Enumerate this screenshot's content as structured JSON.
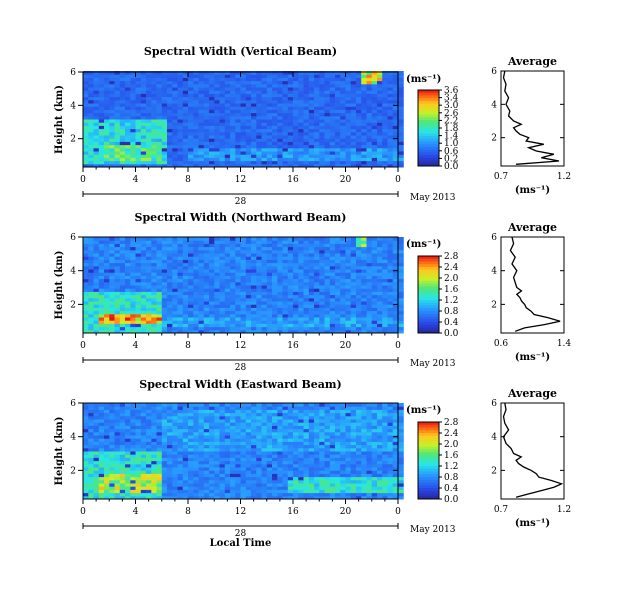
{
  "chart_data": [
    {
      "type": "heatmap",
      "title": "Spectral Width (Vertical Beam)",
      "ylabel": "Height (km)",
      "xlabel": "",
      "x_ticks": [
        "0",
        "4",
        "8",
        "12",
        "16",
        "20",
        "0"
      ],
      "y_ticks": [
        "2",
        "4",
        "6"
      ],
      "xlim": [
        0,
        24
      ],
      "ylim": [
        0.3,
        6
      ],
      "date_day": "28",
      "date_label": "May 2013",
      "colorbar": {
        "unit": "(ms⁻¹)",
        "min": 0.0,
        "max": 3.6,
        "ticks": [
          "3.6",
          "3.4",
          "3.0",
          "2.6",
          "2.2",
          "1.8",
          "1.4",
          "1.0",
          "0.6",
          "0.2",
          "0.0"
        ]
      },
      "features": [
        {
          "t0": 0,
          "t1": 6.2,
          "h0": 0.4,
          "h1": 3.0,
          "value": 1.6
        },
        {
          "t0": 1.5,
          "t1": 6.0,
          "h0": 0.6,
          "h1": 1.6,
          "value": 2.0
        },
        {
          "t0": 8,
          "t1": 24,
          "h0": 0.6,
          "h1": 1.4,
          "value": 1.1
        },
        {
          "t0": 20.8,
          "t1": 22.4,
          "h0": 5.2,
          "h1": 6.0,
          "value": 2.6
        }
      ],
      "average_profile": {
        "title": "Average",
        "xlabel": "(ms⁻¹)",
        "x_ticks": [
          "0.7",
          "1.2"
        ],
        "xlim": [
          0.7,
          1.2
        ],
        "y_ticks": [
          "2",
          "4",
          "6"
        ],
        "ylim": [
          0.3,
          6
        ],
        "height": [
          0.4,
          0.6,
          0.8,
          1.0,
          1.2,
          1.4,
          1.6,
          1.8,
          2.0,
          2.2,
          2.4,
          2.6,
          2.8,
          3.0,
          3.3,
          3.6,
          4.0,
          4.4,
          4.8,
          5.2,
          5.6,
          6.0
        ],
        "values": [
          0.82,
          1.16,
          1.02,
          1.12,
          0.98,
          0.92,
          1.04,
          0.9,
          0.92,
          0.85,
          0.82,
          0.8,
          0.86,
          0.8,
          0.76,
          0.77,
          0.74,
          0.76,
          0.73,
          0.74,
          0.72,
          0.73
        ]
      }
    },
    {
      "type": "heatmap",
      "title": "Spectral Width (Northward Beam)",
      "ylabel": "Height (km)",
      "xlabel": "",
      "x_ticks": [
        "0",
        "4",
        "8",
        "12",
        "16",
        "20",
        "0"
      ],
      "y_ticks": [
        "2",
        "4",
        "6"
      ],
      "xlim": [
        0,
        24
      ],
      "ylim": [
        0.3,
        6
      ],
      "date_day": "28",
      "date_label": "May 2013",
      "colorbar": {
        "unit": "(ms⁻¹)",
        "min": 0.0,
        "max": 2.8,
        "ticks": [
          "2.8",
          "2.4",
          "2.0",
          "1.6",
          "1.2",
          "0.8",
          "0.4",
          "0.0"
        ]
      },
      "features": [
        {
          "t0": 0,
          "t1": 6.0,
          "h0": 0.3,
          "h1": 2.6,
          "value": 1.3
        },
        {
          "t0": 1.0,
          "t1": 6.0,
          "h0": 0.7,
          "h1": 1.3,
          "value": 2.3
        },
        {
          "t0": 6,
          "t1": 24,
          "h0": 0.5,
          "h1": 1.2,
          "value": 0.9
        },
        {
          "t0": 20.5,
          "t1": 21.5,
          "h0": 5.3,
          "h1": 5.9,
          "value": 1.8
        }
      ],
      "average_profile": {
        "title": "Average",
        "xlabel": "(ms⁻¹)",
        "x_ticks": [
          "0.6",
          "1.4"
        ],
        "xlim": [
          0.6,
          1.4
        ],
        "y_ticks": [
          "2",
          "4",
          "6"
        ],
        "ylim": [
          0.3,
          6
        ],
        "height": [
          0.4,
          0.6,
          0.8,
          1.0,
          1.2,
          1.4,
          1.6,
          1.8,
          2.0,
          2.2,
          2.4,
          2.6,
          2.8,
          3.0,
          3.3,
          3.6,
          4.0,
          4.4,
          4.8,
          5.2,
          5.6,
          6.0
        ],
        "values": [
          0.78,
          0.9,
          1.15,
          1.35,
          1.2,
          1.02,
          0.98,
          0.92,
          0.9,
          0.86,
          0.84,
          0.8,
          0.86,
          0.8,
          0.78,
          0.76,
          0.8,
          0.74,
          0.78,
          0.72,
          0.76,
          0.74
        ]
      }
    },
    {
      "type": "heatmap",
      "title": "Spectral Width (Eastward Beam)",
      "ylabel": "Height (km)",
      "xlabel": "Local Time",
      "x_ticks": [
        "0",
        "4",
        "8",
        "12",
        "16",
        "20",
        "0"
      ],
      "y_ticks": [
        "2",
        "4",
        "6"
      ],
      "xlim": [
        0,
        24
      ],
      "ylim": [
        0.3,
        6
      ],
      "date_day": "28",
      "date_label": "May 2013",
      "colorbar": {
        "unit": "(ms⁻¹)",
        "min": 0.0,
        "max": 2.8,
        "ticks": [
          "2.8",
          "2.4",
          "2.0",
          "1.6",
          "1.2",
          "0.8",
          "0.4",
          "0.0"
        ]
      },
      "features": [
        {
          "t0": 0,
          "t1": 6.0,
          "h0": 0.3,
          "h1": 3.0,
          "value": 1.3
        },
        {
          "t0": 1.0,
          "t1": 6.0,
          "h0": 0.6,
          "h1": 1.8,
          "value": 1.9
        },
        {
          "t0": 15.5,
          "t1": 24,
          "h0": 0.6,
          "h1": 1.6,
          "value": 1.3
        },
        {
          "t0": 6,
          "t1": 24,
          "h0": 3.0,
          "h1": 5.5,
          "value": 0.9
        }
      ],
      "average_profile": {
        "title": "Average",
        "xlabel": "(ms⁻¹)",
        "x_ticks": [
          "0.7",
          "1.2"
        ],
        "xlim": [
          0.7,
          1.2
        ],
        "y_ticks": [
          "2",
          "4",
          "6"
        ],
        "ylim": [
          0.3,
          6
        ],
        "height": [
          0.4,
          0.6,
          0.8,
          1.0,
          1.2,
          1.4,
          1.6,
          1.8,
          2.0,
          2.2,
          2.4,
          2.6,
          2.8,
          3.0,
          3.3,
          3.6,
          4.0,
          4.4,
          4.8,
          5.2,
          5.6,
          6.0
        ],
        "values": [
          0.82,
          0.92,
          1.02,
          1.12,
          1.18,
          1.1,
          1.0,
          0.98,
          0.94,
          0.88,
          0.84,
          0.82,
          0.86,
          0.8,
          0.78,
          0.74,
          0.72,
          0.76,
          0.73,
          0.72,
          0.74,
          0.73
        ]
      }
    }
  ]
}
